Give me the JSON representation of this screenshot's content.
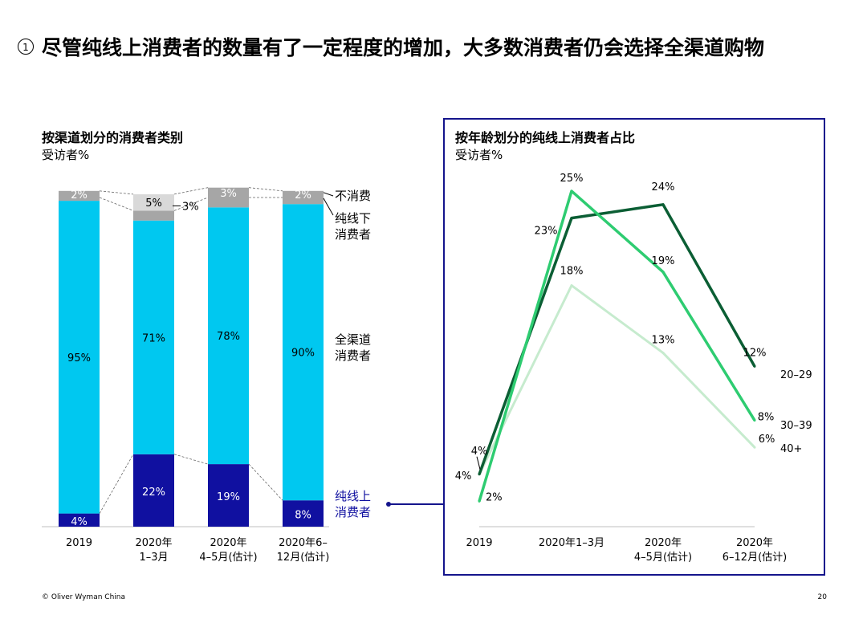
{
  "title_number": "1",
  "title": "尽管纯线上消费者的数量有了一定程度的增加，大多数消费者仍会选择全渠道购物",
  "left_panel": {
    "title": "按渠道划分的消费者类别",
    "unit": "受访者%"
  },
  "right_panel": {
    "title": "按年龄划分的纯线上消费者占比",
    "unit": "受访者%"
  },
  "footer": {
    "copyright": "© Oliver Wyman China",
    "page": "20"
  },
  "colors": {
    "online": "#1010a0",
    "omni": "#00c8f0",
    "offline": "#a6a6a6",
    "nonconsumer": "#d9d9d9",
    "age_20_29": "#0b5e34",
    "age_30_39": "#2ecc71",
    "age_40_plus": "#c6ebce",
    "accent": "#14148c"
  },
  "chart_data": [
    {
      "type": "bar",
      "stacked": true,
      "title": "按渠道划分的消费者类别",
      "ylabel": "受访者%",
      "categories": [
        "2019",
        "2020年\n1–3月",
        "2020年\n4–5月(估计)",
        "2020年6–\n12月(估计)"
      ],
      "series": [
        {
          "name": "纯线上\n消费者",
          "values": [
            4,
            22,
            19,
            8
          ]
        },
        {
          "name": "全渠道\n消费者",
          "values": [
            95,
            71,
            78,
            90
          ]
        },
        {
          "name": "纯线下\n消费者",
          "values": [
            1,
            3,
            3,
            2
          ]
        },
        {
          "name": "不消费",
          "values": [
            2,
            5,
            3,
            2
          ]
        }
      ],
      "labels": {
        "纯线上\n消费者": [
          "4%",
          "22%",
          "19%",
          "8%"
        ],
        "全渠道\n消费者": [
          "95%",
          "71%",
          "78%",
          "90%"
        ],
        "top": [
          "2%",
          "5%",
          "3%",
          "2%"
        ],
        "callout": "3%"
      },
      "ylim": [
        0,
        100
      ]
    },
    {
      "type": "line",
      "title": "按年龄划分的纯线上消费者占比",
      "ylabel": "受访者%",
      "x": [
        "2019",
        "2020年1–3月",
        "2020年\n4–5月(估计)",
        "2020年\n6–12月(估计)"
      ],
      "series": [
        {
          "name": "20–29",
          "values": [
            4,
            23,
            24,
            12
          ],
          "labels": [
            "4%",
            "23%",
            "24%",
            "12%"
          ]
        },
        {
          "name": "30–39",
          "values": [
            2,
            25,
            19,
            8
          ],
          "labels": [
            "2%",
            "25%",
            "19%",
            "8%"
          ]
        },
        {
          "name": "40+",
          "values": [
            4,
            18,
            13,
            6
          ],
          "labels": [
            "4%",
            "18%",
            "13%",
            "6%"
          ]
        }
      ],
      "ylim": [
        0,
        27
      ]
    }
  ]
}
